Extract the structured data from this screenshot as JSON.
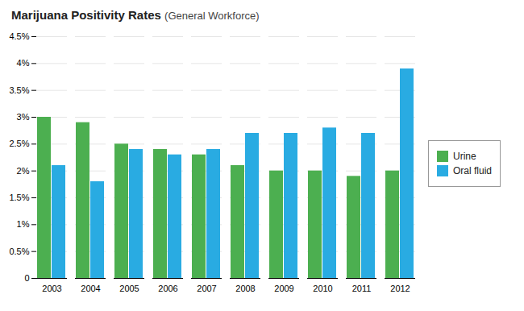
{
  "chart_data": {
    "type": "bar",
    "title": "Marijuana Positivity Rates",
    "subtitle": "(General Workforce)",
    "categories": [
      "2003",
      "2004",
      "2005",
      "2006",
      "2007",
      "2008",
      "2009",
      "2010",
      "2011",
      "2012"
    ],
    "series": [
      {
        "name": "Urine",
        "color": "#4CAF50",
        "values": [
          3.0,
          2.9,
          2.5,
          2.4,
          2.3,
          2.1,
          2.0,
          2.0,
          1.9,
          2.0
        ]
      },
      {
        "name": "Oral fluid",
        "color": "#29ABE2",
        "values": [
          2.1,
          1.8,
          2.4,
          2.3,
          2.4,
          2.7,
          2.7,
          2.8,
          2.7,
          3.9
        ]
      }
    ],
    "ylim": [
      0,
      4.5
    ],
    "yticks": [
      0,
      {
        "value": 0.5,
        "label": "0.5%"
      },
      {
        "value": 1.0,
        "label": "1%"
      },
      {
        "value": 1.5,
        "label": "1.5%"
      },
      {
        "value": 2.0,
        "label": "2%"
      },
      {
        "value": 2.5,
        "label": "2.5%"
      },
      {
        "value": 3.0,
        "label": "3%"
      },
      {
        "value": 3.5,
        "label": "3.5%"
      },
      {
        "value": 4.0,
        "label": "4%"
      },
      {
        "value": 4.5,
        "label": "4.5%"
      }
    ],
    "grid": true,
    "legend": "right"
  }
}
